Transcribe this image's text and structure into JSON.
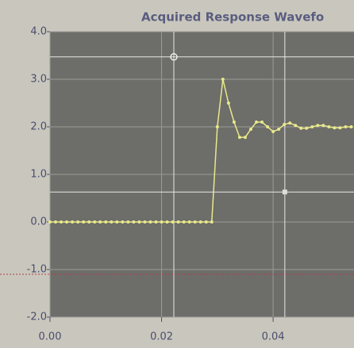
{
  "chart_data": {
    "type": "line",
    "title": "Acquired Response Wavefo",
    "x": [
      0,
      0.001,
      0.002,
      0.003,
      0.004,
      0.005,
      0.006,
      0.007,
      0.008,
      0.009,
      0.01,
      0.011,
      0.012,
      0.013,
      0.014,
      0.015,
      0.016,
      0.017,
      0.018,
      0.019,
      0.02,
      0.021,
      0.022,
      0.023,
      0.024,
      0.025,
      0.026,
      0.027,
      0.028,
      0.029,
      0.03,
      0.031,
      0.032,
      0.033,
      0.034,
      0.035,
      0.036,
      0.037,
      0.038,
      0.039,
      0.04,
      0.041,
      0.042,
      0.043,
      0.044,
      0.045,
      0.046,
      0.047,
      0.048,
      0.049,
      0.05,
      0.051,
      0.052,
      0.053,
      0.054
    ],
    "series": [
      {
        "color": "#e8e88c",
        "values": [
          0,
          0,
          0,
          0,
          0,
          0,
          0,
          0,
          0,
          0,
          0,
          0,
          0,
          0,
          0,
          0,
          0,
          0,
          0,
          0,
          0,
          0,
          0,
          0,
          0,
          0,
          0,
          0,
          0,
          0,
          2.0,
          3.0,
          2.5,
          2.1,
          1.78,
          1.78,
          1.95,
          2.1,
          2.1,
          2.0,
          1.9,
          1.95,
          2.05,
          2.08,
          2.03,
          1.97,
          1.97,
          2.0,
          2.03,
          2.03,
          2.0,
          1.98,
          1.98,
          2.0,
          2.0
        ]
      }
    ],
    "xlim": [
      0,
      0.0545
    ],
    "ylim": [
      -2,
      4
    ],
    "xticks": [
      {
        "value": 0,
        "label": "0.00"
      },
      {
        "value": 0.02,
        "label": "0.02"
      },
      {
        "value": 0.04,
        "label": "0.04"
      }
    ],
    "yticks": [
      {
        "value": -2,
        "label": "-2.0"
      },
      {
        "value": -1,
        "label": "-1.0"
      },
      {
        "value": 0,
        "label": "0.0"
      },
      {
        "value": 1,
        "label": "1.0"
      },
      {
        "value": 2,
        "label": "2.0"
      },
      {
        "value": 3,
        "label": "3.0"
      },
      {
        "value": 4,
        "label": "4.0"
      }
    ],
    "grid": true,
    "cursors": [
      {
        "x": 0.0222,
        "y": 3.47
      },
      {
        "x": 0.0421,
        "y": 0.63
      }
    ],
    "limit_line": -1.1
  }
}
